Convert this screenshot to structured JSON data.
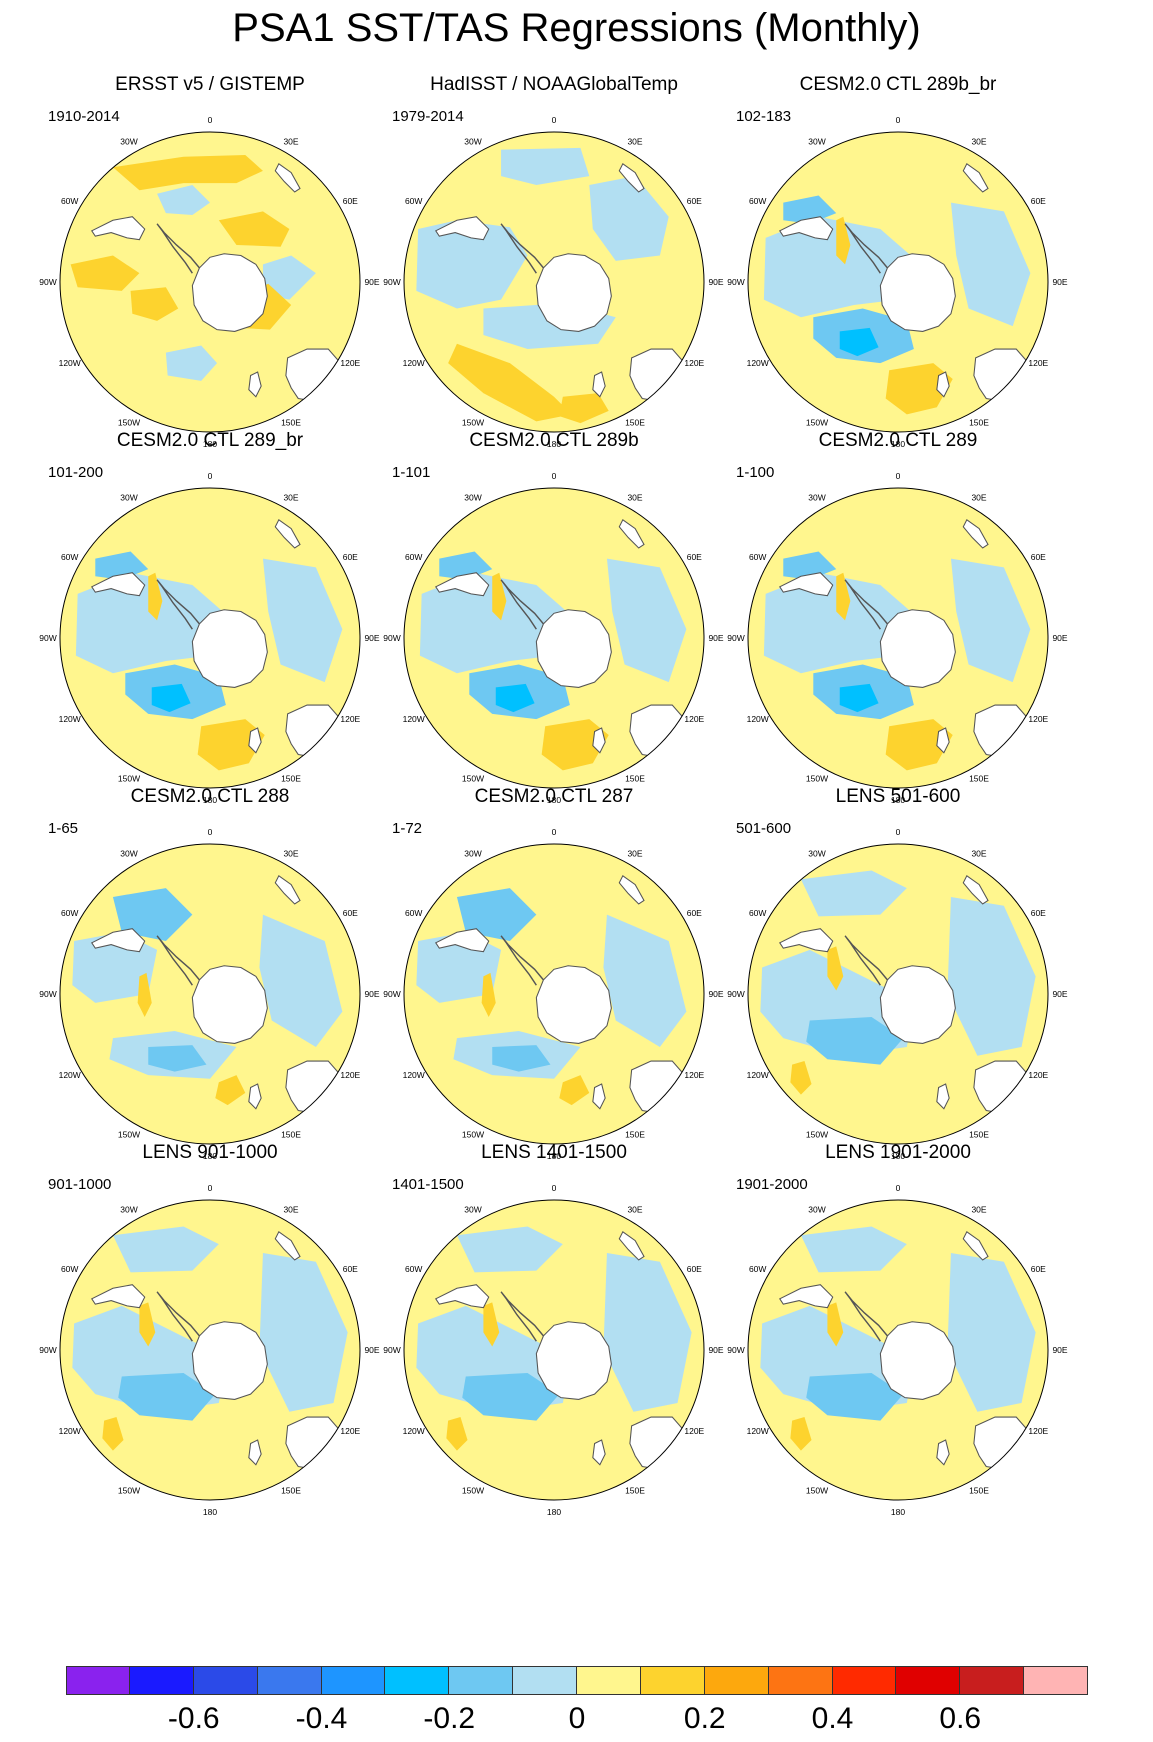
{
  "title": "PSA1 SST/TAS Regressions (Monthly)",
  "lon_labels": [
    "0",
    "30E",
    "60E",
    "90E",
    "120E",
    "150E",
    "180",
    "150W",
    "120W",
    "90W",
    "60W",
    "30W"
  ],
  "panels": [
    {
      "title": "ERSST v5 / GISTEMP",
      "period": "1910-2014",
      "style": "obs1"
    },
    {
      "title": "HadISST / NOAAGlobalTemp",
      "period": "1979-2014",
      "style": "obs2"
    },
    {
      "title": "CESM2.0 CTL 289b_br",
      "period": "102-183",
      "style": "model"
    },
    {
      "title": "CESM2.0 CTL 289_br",
      "period": "101-200",
      "style": "model"
    },
    {
      "title": "CESM2.0 CTL 289b",
      "period": "1-101",
      "style": "model"
    },
    {
      "title": "CESM2.0 CTL 289",
      "period": "1-100",
      "style": "model"
    },
    {
      "title": "CESM2.0 CTL 288",
      "period": "1-65",
      "style": "weak"
    },
    {
      "title": "CESM2.0 CTL 287",
      "period": "1-72",
      "style": "weak"
    },
    {
      "title": "LENS 501-600",
      "period": "501-600",
      "style": "lens"
    },
    {
      "title": "LENS 901-1000",
      "period": "901-1000",
      "style": "lens"
    },
    {
      "title": "LENS 1401-1500",
      "period": "1401-1500",
      "style": "lens"
    },
    {
      "title": "LENS 1901-2000",
      "period": "1901-2000",
      "style": "lens"
    }
  ],
  "colorbar": {
    "colors": [
      "#8a22ee",
      "#1a1aff",
      "#2b4ae8",
      "#3a78ee",
      "#1e95ff",
      "#00c0ff",
      "#6ec8f2",
      "#b2dff2",
      "#fff68e",
      "#fdd32e",
      "#fda80d",
      "#fd7413",
      "#ff2a00",
      "#e00000",
      "#c81e1e",
      "#ffb4b4"
    ],
    "labels": [
      "-0.6",
      "-0.4",
      "-0.2",
      "0",
      "0.2",
      "0.4",
      "0.6"
    ],
    "label_values": [
      -0.6,
      -0.4,
      -0.2,
      0,
      0.2,
      0.4,
      0.6
    ],
    "min": -0.8,
    "step": 0.1
  },
  "map_colors": {
    "neg_weak": "#b2dff2",
    "neg_mid": "#6ec8f2",
    "neg_strong": "#00c0ff",
    "pos_weak": "#fff68e",
    "pos_mid": "#fdd32e",
    "land": "#ffffff",
    "coast": "#555555"
  }
}
